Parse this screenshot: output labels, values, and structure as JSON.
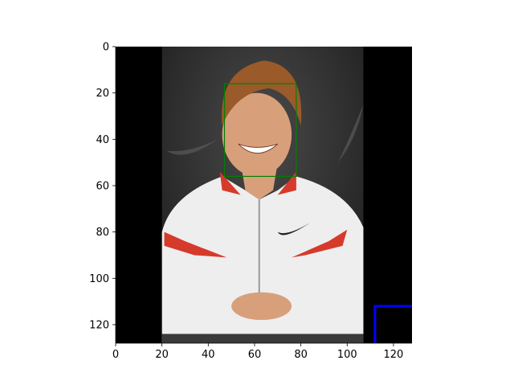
{
  "chart_data": {
    "type": "image",
    "title": "",
    "xlabel": "",
    "ylabel": "",
    "xlim": [
      0,
      128
    ],
    "ylim": [
      128,
      0
    ],
    "y_inverted": true,
    "x_ticks": [
      0,
      20,
      40,
      60,
      80,
      100,
      120
    ],
    "y_ticks": [
      0,
      20,
      40,
      60,
      80,
      100,
      120
    ],
    "x_tick_labels": [
      "0",
      "20",
      "40",
      "60",
      "80",
      "100",
      "120"
    ],
    "y_tick_labels": [
      "0",
      "20",
      "40",
      "60",
      "80",
      "100",
      "120"
    ],
    "grid": false,
    "image": {
      "description_icon": "portrait-photo-icon",
      "photo_extent_x": [
        20,
        107
      ],
      "photo_extent_y": [
        0,
        128
      ],
      "pad_color": "#000000",
      "background_color": "#2a2a2a",
      "jacket_color": "#eeeeee",
      "accent_color": "#d63a2a",
      "hair_color": "#9a5a2a",
      "skin_color": "#d8a07a"
    },
    "annotations": [
      {
        "name": "face-box",
        "shape": "rectangle",
        "color": "#008000",
        "x": [
          47,
          78
        ],
        "y": [
          16,
          56
        ]
      },
      {
        "name": "corner-marker",
        "shape": "corner-lines",
        "color": "#0000ff",
        "x": [
          112,
          128
        ],
        "y": [
          112,
          128
        ]
      }
    ]
  }
}
